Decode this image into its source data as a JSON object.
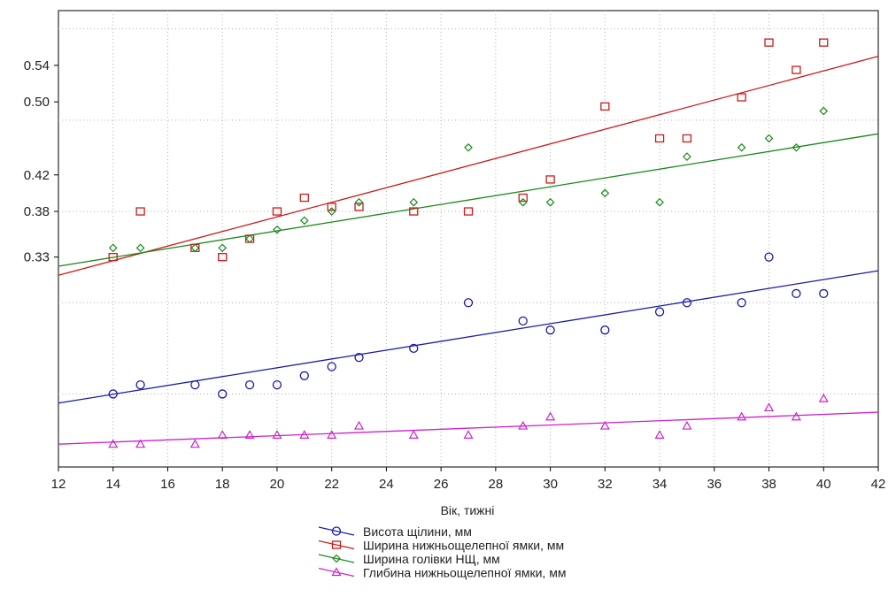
{
  "chart_data": {
    "type": "scatter",
    "xlabel": "Вік, тижні",
    "ylabel": "",
    "xlim": [
      12,
      42
    ],
    "ylim": [
      0.1,
      0.6
    ],
    "x_ticks": [
      12,
      14,
      16,
      18,
      20,
      22,
      24,
      26,
      28,
      30,
      32,
      34,
      36,
      38,
      40,
      42
    ],
    "y_tick_labels": [
      0.33,
      0.38,
      0.42,
      0.5,
      0.54
    ],
    "y_gridlines": [
      0.18,
      0.28,
      0.38,
      0.48,
      0.58
    ],
    "grid": true,
    "legend_position": "bottom-center",
    "series": [
      {
        "name": "Висота щілини, мм",
        "marker": "circle",
        "color": "#1a1aaa",
        "points": [
          [
            14,
            0.18
          ],
          [
            15,
            0.19
          ],
          [
            17,
            0.19
          ],
          [
            18,
            0.18
          ],
          [
            19,
            0.19
          ],
          [
            20,
            0.19
          ],
          [
            21,
            0.2
          ],
          [
            22,
            0.21
          ],
          [
            23,
            0.22
          ],
          [
            25,
            0.23
          ],
          [
            27,
            0.28
          ],
          [
            29,
            0.26
          ],
          [
            30,
            0.25
          ],
          [
            32,
            0.25
          ],
          [
            34,
            0.27
          ],
          [
            35,
            0.28
          ],
          [
            37,
            0.28
          ],
          [
            38,
            0.33
          ],
          [
            39,
            0.29
          ],
          [
            40,
            0.29
          ]
        ],
        "trend": [
          [
            12,
            0.17
          ],
          [
            42,
            0.315
          ]
        ]
      },
      {
        "name": "Ширина нижньощелепної ямки, мм",
        "marker": "square",
        "color": "#cc1a1a",
        "points": [
          [
            14,
            0.33
          ],
          [
            15,
            0.38
          ],
          [
            17,
            0.34
          ],
          [
            18,
            0.33
          ],
          [
            19,
            0.35
          ],
          [
            20,
            0.38
          ],
          [
            21,
            0.395
          ],
          [
            22,
            0.385
          ],
          [
            23,
            0.385
          ],
          [
            25,
            0.38
          ],
          [
            27,
            0.38
          ],
          [
            29,
            0.395
          ],
          [
            30,
            0.415
          ],
          [
            32,
            0.495
          ],
          [
            34,
            0.46
          ],
          [
            35,
            0.46
          ],
          [
            37,
            0.505
          ],
          [
            38,
            0.565
          ],
          [
            39,
            0.535
          ],
          [
            40,
            0.565
          ]
        ],
        "trend": [
          [
            12,
            0.31
          ],
          [
            42,
            0.55
          ]
        ]
      },
      {
        "name": "Ширина голівки НЩ, мм",
        "marker": "diamond",
        "color": "#1a8a1a",
        "points": [
          [
            14,
            0.34
          ],
          [
            15,
            0.34
          ],
          [
            17,
            0.34
          ],
          [
            18,
            0.34
          ],
          [
            19,
            0.35
          ],
          [
            20,
            0.36
          ],
          [
            21,
            0.37
          ],
          [
            22,
            0.38
          ],
          [
            23,
            0.39
          ],
          [
            25,
            0.39
          ],
          [
            27,
            0.45
          ],
          [
            29,
            0.39
          ],
          [
            30,
            0.39
          ],
          [
            32,
            0.4
          ],
          [
            34,
            0.39
          ],
          [
            35,
            0.44
          ],
          [
            37,
            0.45
          ],
          [
            38,
            0.46
          ],
          [
            39,
            0.45
          ],
          [
            40,
            0.49
          ]
        ],
        "trend": [
          [
            12,
            0.32
          ],
          [
            42,
            0.465
          ]
        ]
      },
      {
        "name": "Глибина нижньощелепної ямки, мм",
        "marker": "triangle",
        "color": "#cc22cc",
        "points": [
          [
            14,
            0.125
          ],
          [
            15,
            0.125
          ],
          [
            17,
            0.125
          ],
          [
            18,
            0.135
          ],
          [
            19,
            0.135
          ],
          [
            20,
            0.135
          ],
          [
            21,
            0.135
          ],
          [
            22,
            0.135
          ],
          [
            23,
            0.145
          ],
          [
            25,
            0.135
          ],
          [
            27,
            0.135
          ],
          [
            29,
            0.145
          ],
          [
            30,
            0.155
          ],
          [
            32,
            0.145
          ],
          [
            34,
            0.135
          ],
          [
            35,
            0.145
          ],
          [
            37,
            0.155
          ],
          [
            38,
            0.165
          ],
          [
            39,
            0.155
          ],
          [
            40,
            0.175
          ]
        ],
        "trend": [
          [
            12,
            0.125
          ],
          [
            42,
            0.16
          ]
        ]
      }
    ]
  }
}
